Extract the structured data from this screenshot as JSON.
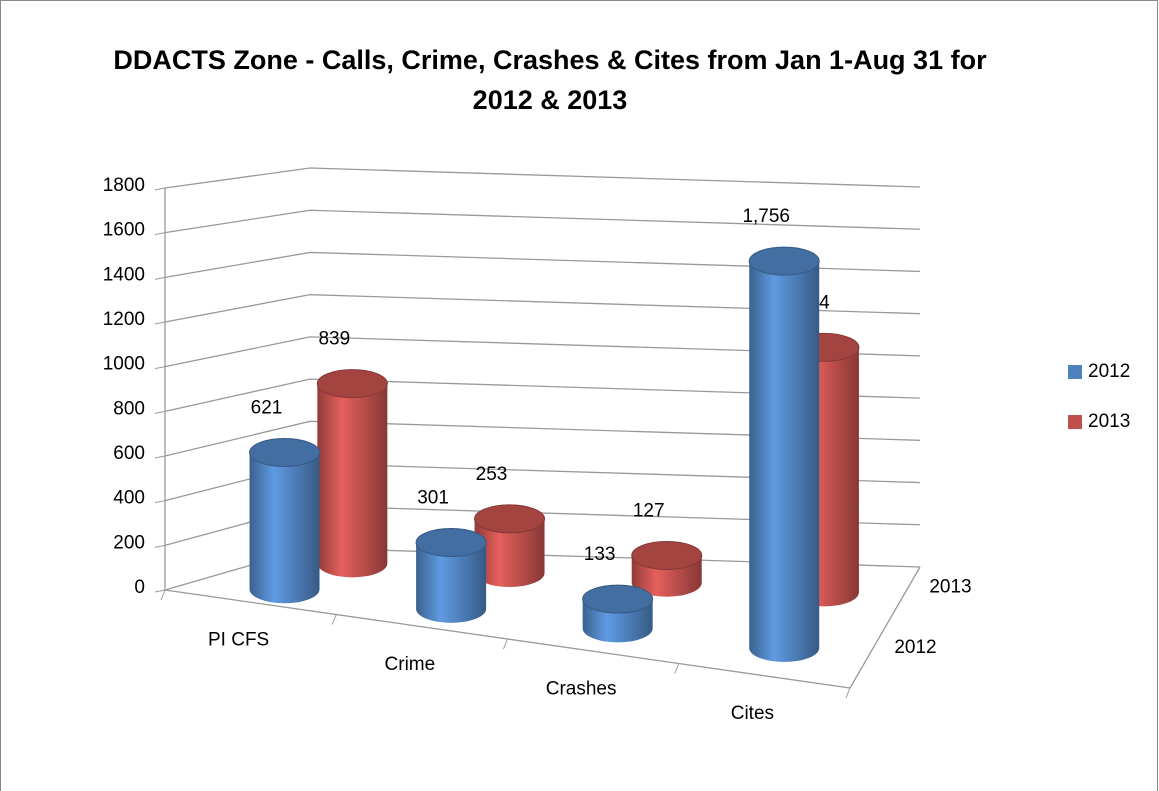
{
  "chart_data": {
    "type": "bar3d",
    "title": "DDACTS Zone - Calls, Crime, Crashes & Cites from Jan 1-Aug 31 for 2012 & 2013",
    "categories": [
      "PI CFS",
      "Crime",
      "Crashes",
      "Cites"
    ],
    "series": [
      {
        "name": "2012",
        "color": "#4f81bd",
        "values": [
          621,
          301,
          133,
          1756
        ],
        "value_labels": [
          "621",
          "301",
          "133",
          "1,756"
        ]
      },
      {
        "name": "2013",
        "color": "#c0504d",
        "values": [
          839,
          253,
          127,
          1144
        ],
        "value_labels": [
          "839",
          "253",
          "127",
          "1,144"
        ]
      }
    ],
    "ylim": [
      0,
      1800
    ],
    "yticks": [
      0,
      200,
      400,
      600,
      800,
      1000,
      1200,
      1400,
      1600,
      1800
    ],
    "grid": true,
    "legend": "right"
  }
}
